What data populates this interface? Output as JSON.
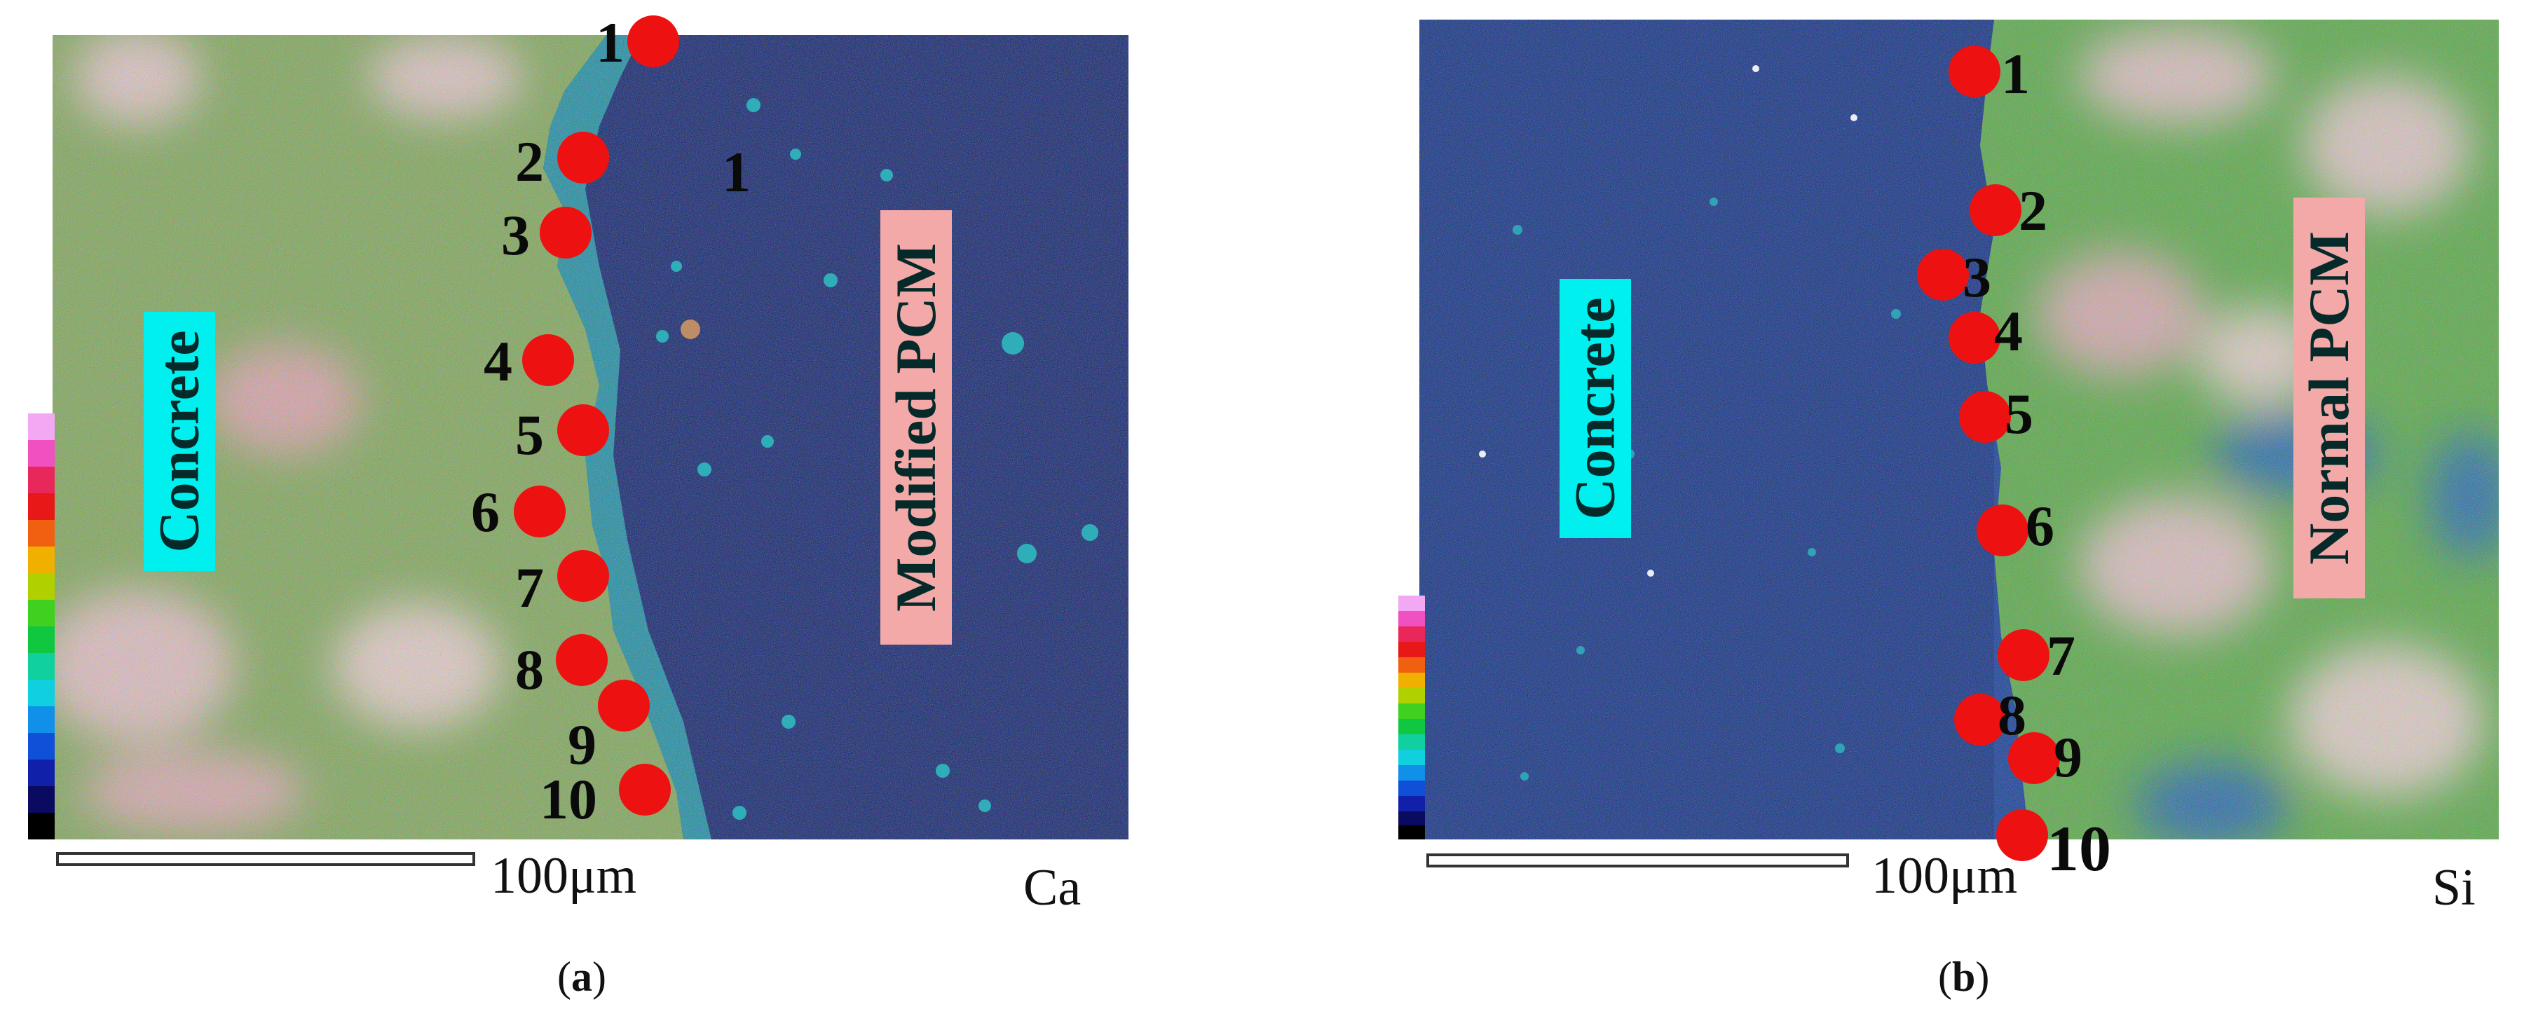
{
  "colors": {
    "marker": "#ee1111",
    "concrete_label_bg": "#00f0f0",
    "pcm_label_bg": "#f4a9a9",
    "map_background": "#0a1a6e"
  },
  "panels": [
    {
      "id": "a",
      "left_label": "Concrete",
      "right_label": "Modified PCM",
      "scale_text": "100μm",
      "element": "Ca",
      "caption_letter": "a",
      "extra_label": "1",
      "points": [
        "1",
        "2",
        "3",
        "4",
        "5",
        "6",
        "7",
        "8",
        "9",
        "10"
      ]
    },
    {
      "id": "b",
      "left_label": "Concrete",
      "right_label": "Normal PCM",
      "scale_text": "100μm",
      "element": "Si",
      "caption_letter": "b",
      "points": [
        "1",
        "2",
        "3",
        "4",
        "5",
        "6",
        "7",
        "8",
        "9",
        "10"
      ]
    }
  ]
}
